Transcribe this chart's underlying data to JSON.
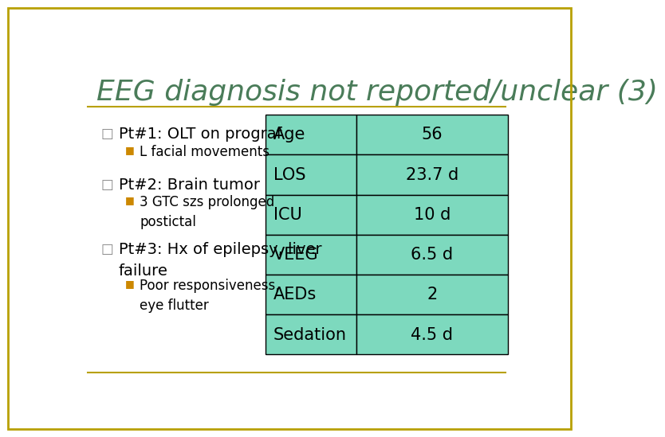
{
  "title": "EEG diagnosis not reported/unclear (3)",
  "title_color": "#4a7c59",
  "title_fontsize": 26,
  "bg_color": "#ffffff",
  "border_color": "#b8a000",
  "bullet_items": [
    {
      "main": "Pt#1: OLT on prograf",
      "sub": "L facial movements"
    },
    {
      "main": "Pt#2: Brain tumor",
      "sub": "3 GTC szs prolonged\npostictal"
    },
    {
      "main": "Pt#3: Hx of epilepsy, liver\nfailure",
      "sub": "Poor responsiveness,\neye flutter"
    }
  ],
  "table_rows": [
    [
      "Age",
      "56"
    ],
    [
      "LOS",
      "23.7 d"
    ],
    [
      "ICU",
      "10 d"
    ],
    [
      "VEEG",
      "6.5 d"
    ],
    [
      "AEDs",
      "2"
    ],
    [
      "Sedation",
      "4.5 d"
    ]
  ],
  "table_cell_color": "#7dd9be",
  "table_border_color": "#000000",
  "square_bullet_color": "#888888",
  "orange_bullet_color": "#cc8800",
  "main_fontsize": 14,
  "sub_fontsize": 12,
  "table_fontsize": 15
}
